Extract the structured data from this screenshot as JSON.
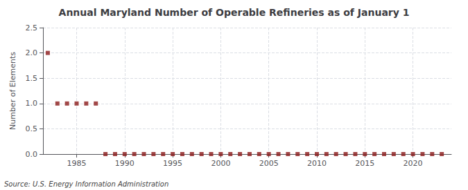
{
  "chart_data": {
    "type": "scatter",
    "title": "Annual Maryland Number of Operable Refineries as of January 1",
    "ylabel": "Number of Elements",
    "annotations": [
      "Source: U.S. Energy Information Administration"
    ],
    "x": [
      1982,
      1983,
      1984,
      1985,
      1986,
      1987,
      1988,
      1989,
      1990,
      1991,
      1992,
      1993,
      1994,
      1995,
      1996,
      1997,
      1998,
      1999,
      2000,
      2001,
      2002,
      2003,
      2004,
      2005,
      2006,
      2007,
      2008,
      2009,
      2010,
      2011,
      2012,
      2013,
      2014,
      2015,
      2016,
      2017,
      2018,
      2019,
      2020,
      2021,
      2022,
      2023
    ],
    "values": [
      2,
      1,
      1,
      1,
      1,
      1,
      0,
      0,
      0,
      0,
      0,
      0,
      0,
      0,
      0,
      0,
      0,
      0,
      0,
      0,
      0,
      0,
      0,
      0,
      0,
      0,
      0,
      0,
      0,
      0,
      0,
      0,
      0,
      0,
      0,
      0,
      0,
      0,
      0,
      0,
      0,
      0
    ],
    "color": "#8b1a1a",
    "marker": "square",
    "xlim": [
      1981.5,
      2024
    ],
    "xticks": [
      1985,
      1990,
      1995,
      2000,
      2005,
      2010,
      2015,
      2020
    ],
    "ylim": [
      0,
      2.5
    ],
    "yticks": [
      {
        "value": 0,
        "label": "0.0"
      },
      0.5,
      {
        "value": 1,
        "label": "1.0"
      },
      1.5,
      {
        "value": 2,
        "label": "2.0"
      },
      2.5
    ],
    "grid": true
  }
}
